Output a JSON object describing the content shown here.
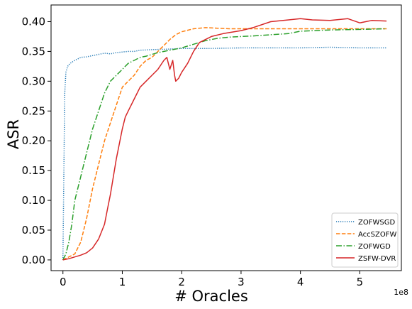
{
  "chart_data": {
    "type": "line",
    "xlabel": "# Oracles",
    "ylabel": "ASR",
    "x_exponent_label": "1e8",
    "xlim": [
      -0.2,
      5.7
    ],
    "ylim": [
      -0.018,
      0.428
    ],
    "x_ticks": [
      0,
      1,
      2,
      3,
      4,
      5
    ],
    "x_tick_labels": [
      "0",
      "1",
      "2",
      "3",
      "4",
      "5"
    ],
    "y_ticks": [
      0.0,
      0.05,
      0.1,
      0.15,
      0.2,
      0.25,
      0.3,
      0.35,
      0.4
    ],
    "y_tick_labels": [
      "0.00",
      "0.05",
      "0.10",
      "0.15",
      "0.20",
      "0.25",
      "0.30",
      "0.35",
      "0.40"
    ],
    "grid": false,
    "legend_position": "lower-right",
    "series": [
      {
        "name": "ZOFWSGD",
        "color": "#1f77b4",
        "linestyle": "dotted",
        "x": [
          0,
          0.03,
          0.05,
          0.08,
          0.12,
          0.2,
          0.3,
          0.4,
          0.5,
          0.6,
          0.7,
          0.8,
          0.9,
          1.0,
          1.1,
          1.2,
          1.3,
          1.5,
          1.8,
          2.0,
          2.5,
          3.0,
          3.5,
          4.0,
          4.5,
          5.0,
          5.45
        ],
        "y": [
          0.0,
          0.28,
          0.315,
          0.325,
          0.33,
          0.335,
          0.34,
          0.341,
          0.343,
          0.345,
          0.347,
          0.346,
          0.348,
          0.349,
          0.35,
          0.35,
          0.352,
          0.353,
          0.354,
          0.355,
          0.355,
          0.356,
          0.356,
          0.356,
          0.357,
          0.356,
          0.356
        ]
      },
      {
        "name": "AccSZOFW",
        "color": "#ff7f0e",
        "linestyle": "dashed",
        "x": [
          0,
          0.1,
          0.2,
          0.3,
          0.4,
          0.5,
          0.6,
          0.7,
          0.8,
          0.9,
          1.0,
          1.1,
          1.2,
          1.3,
          1.4,
          1.5,
          1.6,
          1.7,
          1.8,
          1.9,
          2.0,
          2.2,
          2.4,
          2.6,
          2.8,
          3.0,
          3.5,
          4.0,
          4.5,
          5.0,
          5.45
        ],
        "y": [
          0.0,
          0.005,
          0.01,
          0.03,
          0.07,
          0.12,
          0.16,
          0.2,
          0.23,
          0.26,
          0.29,
          0.3,
          0.31,
          0.325,
          0.335,
          0.34,
          0.35,
          0.36,
          0.37,
          0.378,
          0.383,
          0.388,
          0.39,
          0.389,
          0.388,
          0.388,
          0.388,
          0.388,
          0.388,
          0.388,
          0.388
        ]
      },
      {
        "name": "ZOFWGD",
        "color": "#2ca02c",
        "linestyle": "dashdot",
        "x": [
          0,
          0.05,
          0.1,
          0.15,
          0.2,
          0.3,
          0.4,
          0.5,
          0.6,
          0.7,
          0.8,
          0.9,
          1.0,
          1.1,
          1.2,
          1.3,
          1.4,
          1.5,
          1.6,
          1.8,
          2.0,
          2.2,
          2.4,
          2.6,
          2.8,
          3.0,
          3.2,
          3.5,
          3.8,
          4.0,
          4.5,
          5.0,
          5.45
        ],
        "y": [
          0.0,
          0.01,
          0.03,
          0.06,
          0.1,
          0.14,
          0.18,
          0.22,
          0.25,
          0.28,
          0.3,
          0.31,
          0.32,
          0.33,
          0.335,
          0.34,
          0.342,
          0.345,
          0.348,
          0.352,
          0.356,
          0.362,
          0.368,
          0.372,
          0.374,
          0.375,
          0.376,
          0.378,
          0.38,
          0.384,
          0.386,
          0.387,
          0.388
        ]
      },
      {
        "name": "ZSFW-DVR",
        "color": "#d62728",
        "linestyle": "solid",
        "x": [
          0,
          0.1,
          0.2,
          0.3,
          0.4,
          0.5,
          0.6,
          0.7,
          0.75,
          0.8,
          0.85,
          0.9,
          0.95,
          1.0,
          1.05,
          1.1,
          1.2,
          1.3,
          1.4,
          1.5,
          1.6,
          1.7,
          1.75,
          1.8,
          1.85,
          1.88,
          1.9,
          1.95,
          2.0,
          2.1,
          2.2,
          2.3,
          2.5,
          2.7,
          3.0,
          3.2,
          3.5,
          3.8,
          4.0,
          4.2,
          4.5,
          4.8,
          5.0,
          5.2,
          5.45
        ],
        "y": [
          0.0,
          0.002,
          0.005,
          0.008,
          0.012,
          0.02,
          0.035,
          0.06,
          0.085,
          0.11,
          0.14,
          0.17,
          0.195,
          0.22,
          0.24,
          0.25,
          0.27,
          0.29,
          0.3,
          0.31,
          0.32,
          0.335,
          0.34,
          0.32,
          0.335,
          0.31,
          0.3,
          0.305,
          0.315,
          0.33,
          0.35,
          0.365,
          0.375,
          0.38,
          0.385,
          0.39,
          0.4,
          0.403,
          0.405,
          0.403,
          0.402,
          0.405,
          0.398,
          0.402,
          0.401
        ]
      }
    ]
  }
}
